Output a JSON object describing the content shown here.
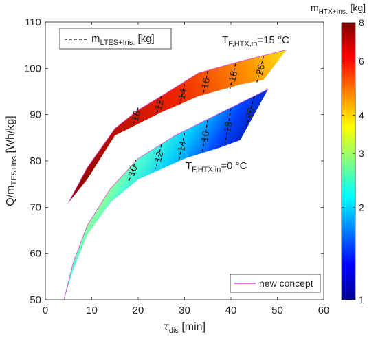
{
  "chart_data": {
    "type": "area",
    "xlabel": {
      "symbol": "τ",
      "sub": "dis",
      "unit": " [min]"
    },
    "ylabel": {
      "base": "Q/m",
      "sub": "TES+Ins",
      "unit": " [Wh/kg]"
    },
    "xlim": [
      0,
      60
    ],
    "ylim": [
      50,
      110
    ],
    "x_ticks": [
      0,
      10,
      20,
      30,
      40,
      50,
      60
    ],
    "y_ticks": [
      50,
      60,
      70,
      80,
      90,
      100,
      110
    ],
    "grid": false,
    "legend_topleft": {
      "label_main": "m",
      "label_sub": "LTES+Ins.",
      "label_unit": " [kg]",
      "line_style": "dashed"
    },
    "legend_bottomright": {
      "label": "new concept",
      "color": "#e040e0"
    },
    "annotations": [
      {
        "id": "upper",
        "main": "T",
        "sub": "F,HTX,in",
        "value": "=15 °C"
      },
      {
        "id": "lower",
        "main": "T",
        "sub": "F,HTX,in",
        "value": "=0 °C"
      }
    ],
    "colorbar": {
      "title_main": "m",
      "title_sub": "HTX+Ins.",
      "title_unit": " [kg]",
      "scale": "log",
      "range": [
        1,
        8
      ],
      "ticks": [
        1,
        2,
        3,
        4,
        6,
        8
      ],
      "colormap": "jet"
    },
    "series": [
      {
        "name": "upper",
        "surface_color_range": [
          4.5,
          8
        ],
        "top": [
          [
            5,
            71
          ],
          [
            9,
            78.5
          ],
          [
            15,
            87
          ],
          [
            20,
            91
          ],
          [
            25,
            94
          ],
          [
            33,
            99
          ],
          [
            42,
            101.5
          ],
          [
            52,
            104
          ]
        ],
        "bottom": [
          [
            5,
            71
          ],
          [
            9,
            76
          ],
          [
            15,
            85.5
          ],
          [
            20,
            88
          ],
          [
            25,
            90.5
          ],
          [
            33,
            94
          ],
          [
            42,
            96.5
          ],
          [
            47,
            97.5
          ],
          [
            52,
            104
          ]
        ],
        "contours": [
          {
            "label": "10",
            "points": [
              [
                20,
                91.5
              ],
              [
                19,
                88
              ]
            ]
          },
          {
            "label": "12",
            "points": [
              [
                25,
                94
              ],
              [
                24,
                90.3
              ]
            ]
          },
          {
            "label": "14",
            "points": [
              [
                30,
                96.6
              ],
              [
                29,
                92.3
              ]
            ]
          },
          {
            "label": "16",
            "points": [
              [
                35,
                99.4
              ],
              [
                34,
                94.2
              ]
            ]
          },
          {
            "label": "18",
            "points": [
              [
                41,
                101
              ],
              [
                39.8,
                95.6
              ]
            ]
          },
          {
            "label": "20",
            "points": [
              [
                47,
                102.5
              ],
              [
                45.6,
                97
              ]
            ]
          }
        ]
      },
      {
        "name": "lower",
        "surface_color_range": [
          1,
          3
        ],
        "top": [
          [
            4,
            50
          ],
          [
            6,
            58
          ],
          [
            9,
            66
          ],
          [
            14,
            74
          ],
          [
            20,
            80.5
          ],
          [
            28,
            85.5
          ],
          [
            38,
            90.5
          ],
          [
            48,
            95.5
          ]
        ],
        "bottom": [
          [
            4,
            50
          ],
          [
            6,
            56.5
          ],
          [
            9,
            64
          ],
          [
            14,
            71
          ],
          [
            20,
            76
          ],
          [
            30,
            80.5
          ],
          [
            38,
            83
          ],
          [
            42,
            84.5
          ],
          [
            48,
            95.5
          ]
        ],
        "contours": [
          {
            "label": "10",
            "points": [
              [
                19.5,
                80.3
              ],
              [
                18,
                75.5
              ]
            ]
          },
          {
            "label": "12",
            "points": [
              [
                25,
                83.5
              ],
              [
                23.8,
                78.3
              ]
            ]
          },
          {
            "label": "14",
            "points": [
              [
                30,
                86
              ],
              [
                28.8,
                80.3
              ]
            ]
          },
          {
            "label": "16",
            "points": [
              [
                35,
                88.8
              ],
              [
                33.8,
                81.8
              ]
            ]
          },
          {
            "label": "18",
            "points": [
              [
                40,
                91.3
              ],
              [
                38.7,
                83.4
              ]
            ]
          },
          {
            "label": "20",
            "points": [
              [
                45,
                93.9
              ],
              [
                43.2,
                86.8
              ]
            ]
          }
        ]
      }
    ]
  }
}
